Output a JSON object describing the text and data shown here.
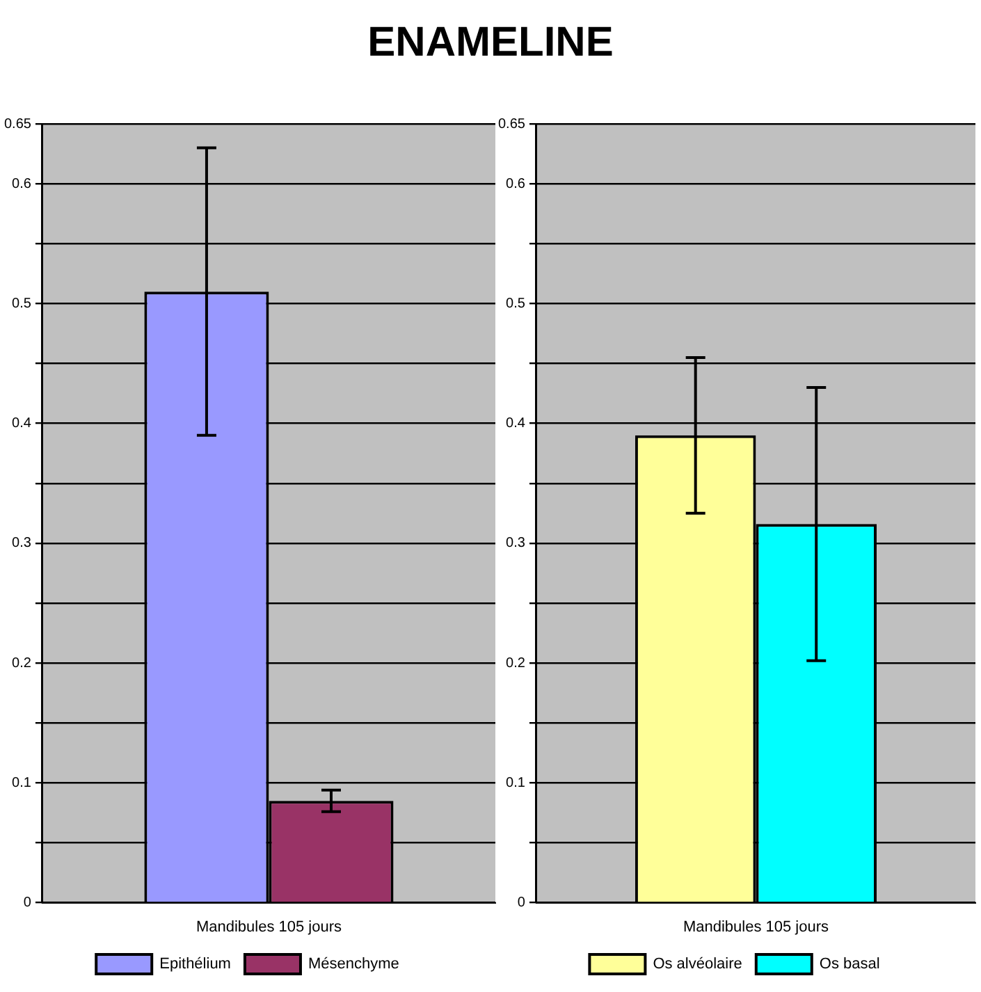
{
  "chart_data": [
    {
      "type": "bar",
      "title": "ENAMELINE",
      "categories": [
        "Mandibules 105 jours"
      ],
      "series": [
        {
          "name": "Epithélium",
          "color": "#9999ff",
          "values": [
            0.51
          ],
          "errors": [
            0.12
          ]
        },
        {
          "name": "Mésenchyme",
          "color": "#993366",
          "values": [
            0.085
          ],
          "errors": [
            0.009
          ]
        }
      ],
      "ylim": [
        0,
        0.65
      ],
      "yticks": [
        0,
        {
          "value": 0.05,
          "label": null
        },
        0.1,
        {
          "value": 0.15,
          "label": null
        },
        0.2,
        {
          "value": 0.25,
          "label": null
        },
        0.3,
        {
          "value": 0.35,
          "label": null
        },
        0.4,
        {
          "value": 0.45,
          "label": null
        },
        0.5,
        {
          "value": 0.55,
          "label": null
        },
        0.6,
        0.65
      ],
      "grid": "y",
      "legend": "bottom"
    },
    {
      "type": "bar",
      "categories": [
        "Mandibules 105 jours"
      ],
      "series": [
        {
          "name": "Os alvéolaire",
          "color": "#ffff99",
          "values": [
            0.39
          ],
          "errors": [
            0.065
          ]
        },
        {
          "name": "Os basal",
          "color": "#00ffff",
          "values": [
            0.316
          ],
          "errors": [
            0.114
          ]
        }
      ],
      "ylim": [
        0,
        0.65
      ],
      "yticks": [
        0,
        {
          "value": 0.05,
          "label": null
        },
        0.1,
        {
          "value": 0.15,
          "label": null
        },
        0.2,
        {
          "value": 0.25,
          "label": null
        },
        0.3,
        {
          "value": 0.35,
          "label": null
        },
        0.4,
        {
          "value": 0.45,
          "label": null
        },
        0.5,
        {
          "value": 0.55,
          "label": null
        },
        0.6,
        0.65
      ],
      "grid": "y",
      "legend": "bottom"
    }
  ]
}
